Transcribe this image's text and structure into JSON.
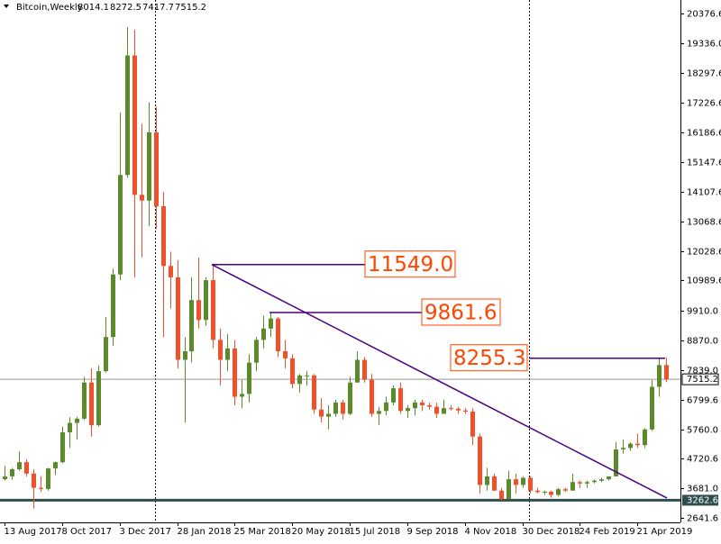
{
  "chart_data": {
    "type": "candlestick",
    "symbol": "Bitcoin,Weekly",
    "up_color": "#5a8a2a",
    "down_color": "#f0502a",
    "ylim": [
      2388,
      20851
    ],
    "yticks": [
      {
        "value": 20376.6,
        "label": "20376.6"
      },
      {
        "value": 19336,
        "label": "19336.0"
      },
      {
        "value": 18297.6,
        "label": "18297.6"
      },
      {
        "value": 17226.6,
        "label": "17226.6"
      },
      {
        "value": 16186.6,
        "label": "16186.6"
      },
      {
        "value": 15147.6,
        "label": "15147.6"
      },
      {
        "value": 14107.6,
        "label": "14107.6"
      },
      {
        "value": 13068.6,
        "label": "13068.6"
      },
      {
        "value": 12028.6,
        "label": "12028.6"
      },
      {
        "value": 10989.6,
        "label": "10989.6"
      },
      {
        "value": 9910,
        "label": "9910.0"
      },
      {
        "value": 8870,
        "label": "8870.0"
      },
      {
        "value": 7839,
        "label": "7839.0"
      },
      {
        "value": 6799.6,
        "label": "6799.6"
      },
      {
        "value": 5760,
        "label": "5760.0"
      },
      {
        "value": 4720.6,
        "label": "4720.6"
      },
      {
        "value": 3681,
        "label": "3681.0"
      },
      {
        "value": 2641.6,
        "label": "2641.6"
      }
    ],
    "categories": [
      "13 Aug 2017",
      null,
      null,
      null,
      null,
      null,
      null,
      null,
      "8 Oct 2017",
      null,
      null,
      null,
      null,
      null,
      null,
      null,
      "3 Dec 2017",
      null,
      null,
      null,
      null,
      null,
      null,
      null,
      "28 Jan 2018",
      null,
      null,
      null,
      null,
      null,
      null,
      null,
      "25 Mar 2018",
      null,
      null,
      null,
      null,
      null,
      null,
      null,
      "20 May 2018",
      null,
      null,
      null,
      null,
      null,
      null,
      null,
      "15 Jul 2018",
      null,
      null,
      null,
      null,
      null,
      null,
      null,
      "9 Sep 2018",
      null,
      null,
      null,
      null,
      null,
      null,
      null,
      "4 Nov 2018",
      null,
      null,
      null,
      null,
      null,
      null,
      null,
      "30 Dec 2018",
      null,
      null,
      null,
      null,
      null,
      null,
      null,
      "24 Feb 2019",
      null,
      null,
      null,
      null,
      null,
      null,
      null,
      "21 Apr 2019",
      null,
      null,
      null,
      null
    ],
    "ohlc": [
      [
        4000,
        4480,
        3950,
        4100
      ],
      [
        4100,
        4400,
        3980,
        4350
      ],
      [
        4350,
        4980,
        4300,
        4600
      ],
      [
        4600,
        4700,
        4100,
        4200
      ],
      [
        4200,
        4350,
        2970,
        3700
      ],
      [
        3700,
        4100,
        3550,
        3660
      ],
      [
        3660,
        4400,
        3600,
        4380
      ],
      [
        4380,
        4620,
        4150,
        4600
      ],
      [
        4600,
        5850,
        4560,
        5650
      ],
      [
        5650,
        6180,
        5100,
        5980
      ],
      [
        5980,
        6200,
        5400,
        6130
      ],
      [
        6130,
        7600,
        6080,
        7400
      ],
      [
        7400,
        7900,
        5500,
        5900
      ],
      [
        5900,
        8000,
        5850,
        7800
      ],
      [
        7800,
        9700,
        7750,
        9000
      ],
      [
        9000,
        11400,
        8700,
        11200
      ],
      [
        11200,
        16900,
        11000,
        14700
      ],
      [
        14700,
        19900,
        14600,
        18900
      ],
      [
        18900,
        19800,
        11100,
        14000
      ],
      [
        14000,
        16500,
        11800,
        13800
      ],
      [
        13800,
        17250,
        12900,
        16200
      ],
      [
        16200,
        17100,
        12800,
        13600
      ],
      [
        13600,
        14100,
        9000,
        11500
      ],
      [
        11500,
        12000,
        10000,
        11100
      ],
      [
        11100,
        11700,
        7900,
        8200
      ],
      [
        8200,
        9000,
        6000,
        8500
      ],
      [
        8500,
        11100,
        8100,
        10300
      ],
      [
        10300,
        11800,
        9300,
        9600
      ],
      [
        9600,
        11100,
        9400,
        11000
      ],
      [
        11000,
        11549,
        8600,
        8900
      ],
      [
        8900,
        9300,
        7300,
        8200
      ],
      [
        8200,
        9100,
        7800,
        8600
      ],
      [
        8600,
        8900,
        6600,
        6900
      ],
      [
        6900,
        7500,
        6500,
        7000
      ],
      [
        7000,
        8400,
        6700,
        8100
      ],
      [
        8100,
        9000,
        7800,
        8900
      ],
      [
        8900,
        9750,
        8600,
        9300
      ],
      [
        9300,
        9861.6,
        9000,
        9650
      ],
      [
        9650,
        9700,
        8300,
        8500
      ],
      [
        8500,
        8900,
        7900,
        8250
      ],
      [
        8250,
        8400,
        7200,
        7350
      ],
      [
        7350,
        7700,
        7050,
        7650
      ],
      [
        7650,
        7800,
        7300,
        7650
      ],
      [
        7650,
        7700,
        6300,
        6450
      ],
      [
        6450,
        6850,
        6000,
        6200
      ],
      [
        6200,
        6600,
        5750,
        6300
      ],
      [
        6300,
        6800,
        6200,
        6700
      ],
      [
        6700,
        6800,
        6100,
        6300
      ],
      [
        6300,
        7600,
        6250,
        7400
      ],
      [
        7400,
        8500,
        7400,
        8200
      ],
      [
        8200,
        8300,
        7400,
        7500
      ],
      [
        7500,
        7700,
        6200,
        6300
      ],
      [
        6300,
        6550,
        5900,
        6400
      ],
      [
        6400,
        6900,
        6250,
        6700
      ],
      [
        6700,
        7300,
        6600,
        7200
      ],
      [
        7200,
        7400,
        6300,
        6400
      ],
      [
        6400,
        6600,
        6150,
        6500
      ],
      [
        6500,
        6800,
        6250,
        6700
      ],
      [
        6700,
        6800,
        6400,
        6600
      ],
      [
        6600,
        6700,
        6450,
        6550
      ],
      [
        6550,
        6700,
        6150,
        6300
      ],
      [
        6300,
        6800,
        6300,
        6500
      ],
      [
        6500,
        6600,
        6420,
        6480
      ],
      [
        6480,
        6550,
        6300,
        6420
      ],
      [
        6420,
        6500,
        6300,
        6380
      ],
      [
        6380,
        6500,
        5200,
        5500
      ],
      [
        5500,
        5600,
        3500,
        3800
      ],
      [
        3800,
        4400,
        3600,
        4100
      ],
      [
        4100,
        4200,
        3600,
        3600
      ],
      [
        3600,
        3700,
        3262.6,
        3300
      ],
      [
        3300,
        4300,
        3300,
        4000
      ],
      [
        4000,
        4200,
        3500,
        3800
      ],
      [
        3800,
        4100,
        3700,
        4050
      ],
      [
        4050,
        4100,
        3500,
        3600
      ],
      [
        3600,
        3700,
        3500,
        3550
      ],
      [
        3550,
        3600,
        3450,
        3560
      ],
      [
        3560,
        3600,
        3350,
        3450
      ],
      [
        3450,
        3700,
        3400,
        3650
      ],
      [
        3650,
        3700,
        3550,
        3600
      ],
      [
        3600,
        4200,
        3600,
        3900
      ],
      [
        3900,
        3950,
        3700,
        3850
      ],
      [
        3850,
        3950,
        3700,
        3900
      ],
      [
        3900,
        4000,
        3850,
        3950
      ],
      [
        3950,
        4050,
        3900,
        4000
      ],
      [
        4000,
        4100,
        3950,
        4100
      ],
      [
        4100,
        5300,
        4100,
        5050
      ],
      [
        5050,
        5400,
        4900,
        5100
      ],
      [
        5100,
        5300,
        5000,
        5250
      ],
      [
        5250,
        5600,
        5100,
        5200
      ],
      [
        5200,
        5800,
        5100,
        5750
      ],
      [
        5750,
        7500,
        5700,
        7250
      ],
      [
        7250,
        8255.3,
        6900,
        8014.1
      ],
      [
        8014.1,
        8272.5,
        7417.7,
        7515.2
      ]
    ],
    "price_labels": [
      {
        "value": 11549,
        "label": "11549.0"
      },
      9861.6,
      8255.3
    ],
    "support": 3262.6,
    "trendline_end": 3340
  }
}
